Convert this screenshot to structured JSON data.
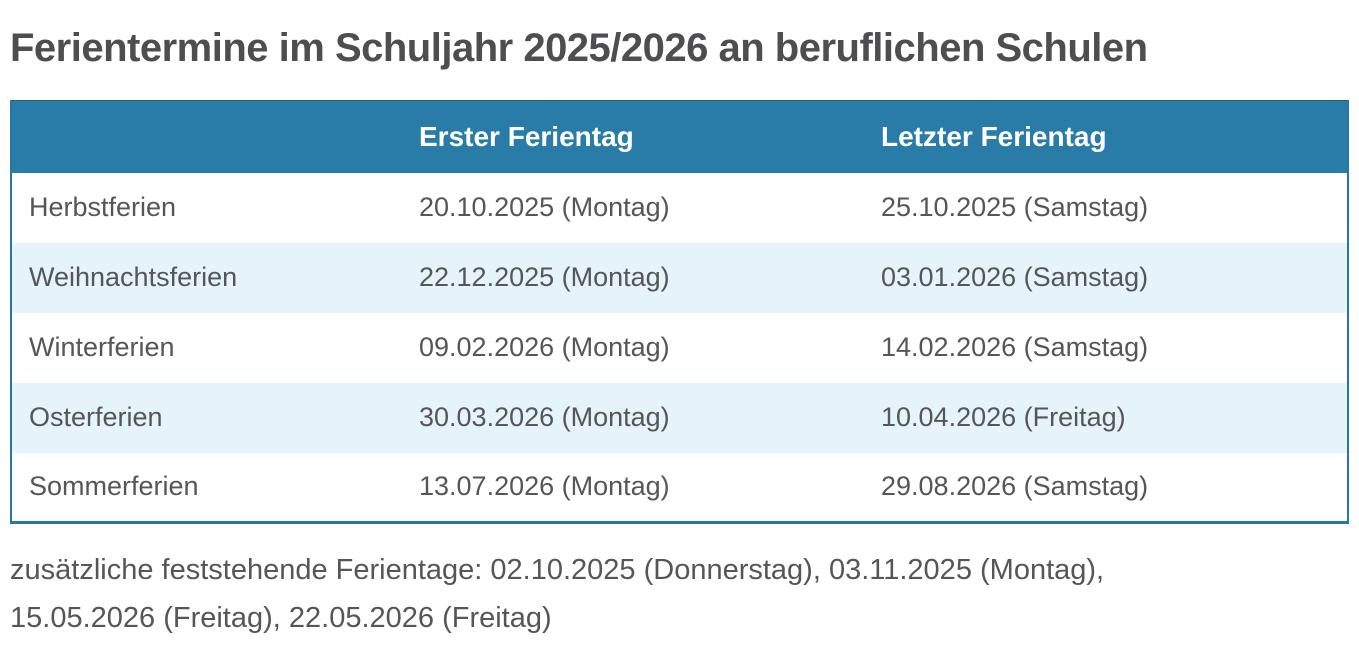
{
  "title": "Ferientermine im Schuljahr 2025/2026 an beruflichen Schulen",
  "colors": {
    "header_bg": "#2a7ca8",
    "header_text": "#ffffff",
    "row_alt_bg": "#e5f3fb",
    "body_text": "#565659",
    "title_text": "#4e4e50",
    "table_border": "#27789f"
  },
  "table": {
    "columns": [
      {
        "label": ""
      },
      {
        "label": "Erster Ferientag"
      },
      {
        "label": "Letzter Ferientag"
      }
    ],
    "rows": [
      {
        "label": "Herbstferien",
        "first_day": "20.10.2025 (Montag)",
        "last_day": "25.10.2025 (Samstag)"
      },
      {
        "label": "Weihnachtsferien",
        "first_day": "22.12.2025 (Montag)",
        "last_day": "03.01.2026 (Samstag)"
      },
      {
        "label": "Winterferien",
        "first_day": "09.02.2026 (Montag)",
        "last_day": "14.02.2026 (Samstag)"
      },
      {
        "label": "Osterferien",
        "first_day": "30.03.2026 (Montag)",
        "last_day": "10.04.2026 (Freitag)"
      },
      {
        "label": "Sommerferien",
        "first_day": "13.07.2026 (Montag)",
        "last_day": "29.08.2026 (Samstag)"
      }
    ]
  },
  "footer": {
    "line1": "zusätzliche feststehende Ferientage: 02.10.2025 (Donnerstag), 03.11.2025 (Montag),",
    "line2": "15.05.2026 (Freitag), 22.05.2026 (Freitag)"
  }
}
